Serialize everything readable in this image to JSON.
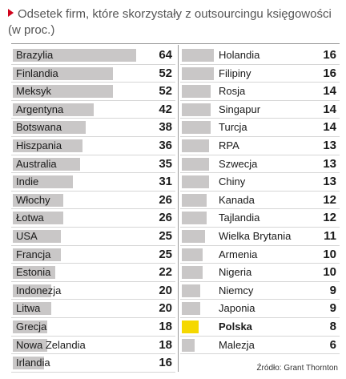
{
  "title": "Odsetek firm, które skorzystały z outsourcingu księgowości (w proc.)",
  "source": "Źródło: Grant Thornton",
  "colors": {
    "bar": "#c9c7c7",
    "highlight": "#f5d800",
    "marker": "#d0021b"
  },
  "chart_data": {
    "type": "bar",
    "title": "Odsetek firm, które skorzystały z outsourcingu księgowości (w proc.)",
    "orientation": "horizontal",
    "highlight": "Polska",
    "categories": [
      "Brazylia",
      "Finlandia",
      "Meksyk",
      "Argentyna",
      "Botswana",
      "Hiszpania",
      "Australia",
      "Indie",
      "Włochy",
      "Łotwa",
      "USA",
      "Francja",
      "Estonia",
      "Indonezja",
      "Litwa",
      "Grecja",
      "Nowa Zelandia",
      "Irlandia",
      "Holandia",
      "Filipiny",
      "Rosja",
      "Singapur",
      "Turcja",
      "RPA",
      "Szwecja",
      "Chiny",
      "Kanada",
      "Tajlandia",
      "Wielka Brytania",
      "Armenia",
      "Nigeria",
      "Niemcy",
      "Japonia",
      "Polska",
      "Malezja"
    ],
    "values": [
      64,
      52,
      52,
      42,
      38,
      36,
      35,
      31,
      26,
      26,
      25,
      25,
      22,
      20,
      20,
      18,
      18,
      16,
      16,
      16,
      14,
      14,
      14,
      13,
      13,
      13,
      12,
      12,
      11,
      10,
      10,
      9,
      9,
      8,
      6
    ],
    "xlim": [
      0,
      64
    ]
  }
}
